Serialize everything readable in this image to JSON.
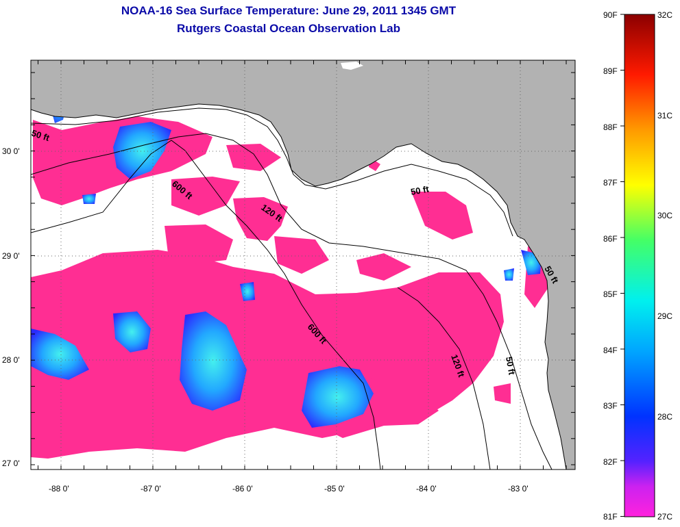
{
  "header": {
    "title": "NOAA-16 Sea Surface Temperature:  June 29, 2011 1345 GMT",
    "subtitle": "Rutgers Coastal Ocean Observation Lab"
  },
  "map": {
    "lat_labels": [
      "30 0'",
      "29 0'",
      "28 0'",
      "27 0'"
    ],
    "lon_labels": [
      "-88 0'",
      "-87 0'",
      "-86 0'",
      "-85 0'",
      "-84 0'",
      "-83 0'"
    ],
    "contour_labels": [
      "50 ft",
      "600 ft",
      "120 ft",
      "50 ft",
      "600 ft",
      "120 ft",
      "50 ft",
      "50 ft"
    ],
    "colors": {
      "land": "#b2b2b2",
      "cloud": "#ffffff",
      "warm_water": "#ff2e93"
    }
  },
  "colorbar": {
    "f_labels": [
      "90F",
      "89F",
      "88F",
      "87F",
      "86F",
      "85F",
      "84F",
      "83F",
      "82F",
      "81F"
    ],
    "c_labels": [
      "32C",
      "31C",
      "30C",
      "29C",
      "28C",
      "27C"
    ]
  }
}
